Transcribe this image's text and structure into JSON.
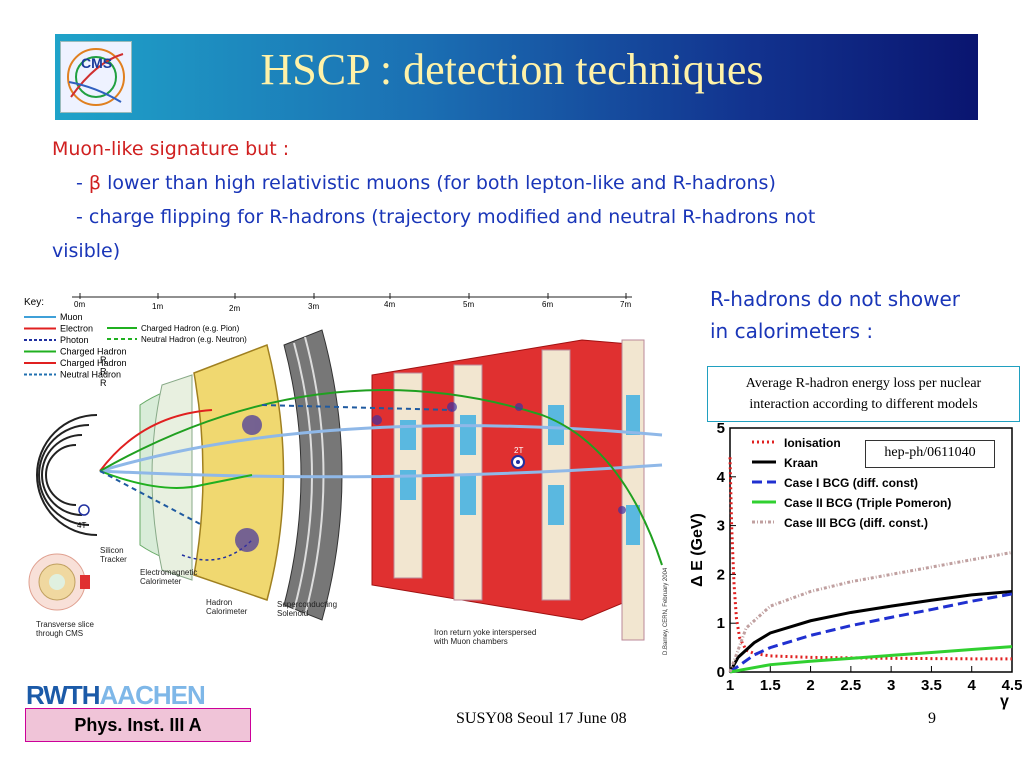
{
  "slide": {
    "title": "HSCP : detection techniques",
    "logo_text": "CMS"
  },
  "intro": {
    "line1": "Muon-like signature but :",
    "line2_prefix": "- ",
    "line2_symbol": "β",
    "line2_rest": " lower than high relativistic muons (for both lepton-like and R-hadrons)",
    "line3": "- charge flipping for R-hadrons (trajectory modified and neutral R-hadrons not",
    "line4": "visible)"
  },
  "detector": {
    "key_title": "Key:",
    "key_items": [
      {
        "label": "Muon",
        "color": "#3fa0d8",
        "dash": false
      },
      {
        "label": "Electron",
        "color": "#e02020",
        "dash": false
      },
      {
        "label": "Photon",
        "color": "#2030a0",
        "dash": true
      },
      {
        "label": "Charged  Hadron",
        "color": "#20b020",
        "dash": false
      },
      {
        "label": "Charged  Hadron",
        "color": "#e02020",
        "dash": false
      },
      {
        "label": "Neutral  Hadron",
        "color": "#2070b0",
        "dash": true
      }
    ],
    "key_r_labels": [
      "R",
      "R",
      "R"
    ],
    "legend2": [
      {
        "label": "Charged Hadron (e.g. Pion)",
        "color": "#20b020",
        "dash": false
      },
      {
        "label": "Neutral Hadron (e.g. Neutron)",
        "color": "#20b020",
        "dash": true
      }
    ],
    "scale_labels": [
      "0m",
      "1m",
      "2m",
      "3m",
      "4m",
      "5m",
      "6m",
      "7m"
    ],
    "field_4t": "4T",
    "field_2t": "2T",
    "labels": {
      "tracker": "Silicon\nTracker",
      "ecal": "Electromagnetic\nCalorimeter",
      "hcal": "Hadron\nCalorimeter",
      "solenoid": "Superconducting\nSolenoid",
      "yoke": "Iron return yoke interspersed\nwith Muon chambers",
      "slice": "Transverse slice\nthrough CMS",
      "credit": "D.Barney, CERN, February 2004"
    }
  },
  "right": {
    "rhadrons_line1": "R-hadrons do not shower",
    "rhadrons_line2": "in calorimeters :",
    "caption_line1": "Average R-hadron energy loss per nuclear",
    "caption_line2": "interaction according to different models",
    "ref": "hep-ph/0611040"
  },
  "chart_data": {
    "type": "line",
    "xlabel": "γ",
    "ylabel": "Δ E (GeV)",
    "xlim": [
      1,
      4.5
    ],
    "ylim": [
      0,
      5
    ],
    "x_ticks": [
      "1",
      "1.5",
      "2",
      "2.5",
      "3",
      "3.5",
      "4",
      "4.5"
    ],
    "y_ticks": [
      "0",
      "1",
      "2",
      "3",
      "4",
      "5"
    ],
    "legend_position": "top-left",
    "series": [
      {
        "name": "Ionisation",
        "color": "#e02020",
        "style": "dotted",
        "x": [
          1.0,
          1.02,
          1.05,
          1.08,
          1.12,
          1.2,
          1.3,
          1.5,
          2.0,
          3.0,
          4.0,
          4.5
        ],
        "y": [
          4.4,
          3.0,
          1.8,
          1.1,
          0.7,
          0.45,
          0.38,
          0.33,
          0.3,
          0.28,
          0.27,
          0.27
        ]
      },
      {
        "name": "Kraan",
        "color": "#000000",
        "style": "solid",
        "x": [
          1.0,
          1.1,
          1.3,
          1.5,
          2.0,
          2.5,
          3.0,
          3.5,
          4.0,
          4.5
        ],
        "y": [
          0.0,
          0.3,
          0.6,
          0.8,
          1.05,
          1.22,
          1.35,
          1.47,
          1.58,
          1.65
        ]
      },
      {
        "name": "Case I BCG (diff. const)",
        "color": "#2030d0",
        "style": "dashed",
        "x": [
          1.0,
          1.3,
          1.5,
          2.0,
          2.5,
          3.0,
          3.5,
          4.0,
          4.5
        ],
        "y": [
          0.0,
          0.35,
          0.5,
          0.75,
          0.95,
          1.12,
          1.28,
          1.45,
          1.6
        ]
      },
      {
        "name": "Case II BCG (Triple Pomeron)",
        "color": "#30d030",
        "style": "solid",
        "x": [
          1.0,
          1.5,
          2.0,
          2.5,
          3.0,
          3.5,
          4.0,
          4.5
        ],
        "y": [
          0.0,
          0.15,
          0.22,
          0.28,
          0.34,
          0.4,
          0.46,
          0.52
        ]
      },
      {
        "name": "Case III BCG (diff. const.)",
        "color": "#c0a0a0",
        "style": "dashdot",
        "x": [
          1.0,
          1.2,
          1.5,
          2.0,
          2.5,
          3.0,
          3.5,
          4.0,
          4.5
        ],
        "y": [
          0.0,
          0.9,
          1.35,
          1.65,
          1.85,
          2.0,
          2.15,
          2.3,
          2.45
        ]
      }
    ]
  },
  "footer": {
    "rwth_a": "RWTH",
    "rwth_b": "AACHEN",
    "institute": "Phys. Inst. III A",
    "conference": "SUSY08  Seoul  17 June 08",
    "page": "9"
  }
}
